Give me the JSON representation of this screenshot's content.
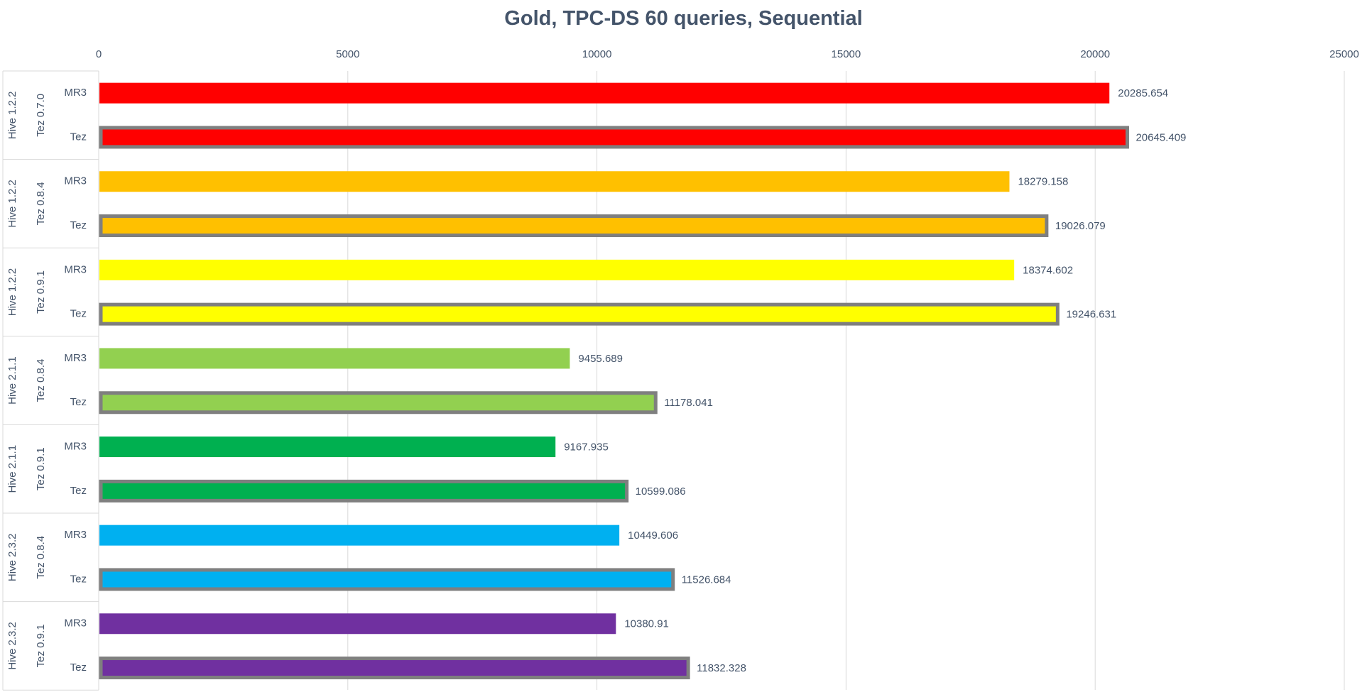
{
  "chart_data": {
    "type": "bar",
    "orientation": "horizontal",
    "title": "Gold, TPC-DS 60 queries, Sequential",
    "xlabel": "",
    "ylabel": "",
    "xlim": [
      0,
      25000
    ],
    "x_ticks": [
      0,
      5000,
      10000,
      15000,
      20000,
      25000
    ],
    "grid": true,
    "legend": "none",
    "groups": [
      {
        "hive": "Hive 1.2.2",
        "tez": "Tez 0.7.0",
        "color": "#ff0000",
        "bars": [
          {
            "label": "MR3",
            "value": 20285.654
          },
          {
            "label": "Tez",
            "value": 20645.409
          }
        ]
      },
      {
        "hive": "Hive 1.2.2",
        "tez": "Tez 0.8.4",
        "color": "#ffc000",
        "bars": [
          {
            "label": "MR3",
            "value": 18279.158
          },
          {
            "label": "Tez",
            "value": 19026.079
          }
        ]
      },
      {
        "hive": "Hive 1.2.2",
        "tez": "Tez 0.9.1",
        "color": "#ffff00",
        "bars": [
          {
            "label": "MR3",
            "value": 18374.602
          },
          {
            "label": "Tez",
            "value": 19246.631
          }
        ]
      },
      {
        "hive": "Hive 2.1.1",
        "tez": "Tez 0.8.4",
        "color": "#92d050",
        "bars": [
          {
            "label": "MR3",
            "value": 9455.689
          },
          {
            "label": "Tez",
            "value": 11178.041
          }
        ]
      },
      {
        "hive": "Hive 2.1.1",
        "tez": "Tez 0.9.1",
        "color": "#00b050",
        "bars": [
          {
            "label": "MR3",
            "value": 9167.935
          },
          {
            "label": "Tez",
            "value": 10599.086
          }
        ]
      },
      {
        "hive": "Hive 2.3.2",
        "tez": "Tez 0.8.4",
        "color": "#00b0f0",
        "bars": [
          {
            "label": "MR3",
            "value": 10449.606
          },
          {
            "label": "Tez",
            "value": 11526.684
          }
        ]
      },
      {
        "hive": "Hive 2.3.2",
        "tez": "Tez 0.9.1",
        "color": "#7030a0",
        "bars": [
          {
            "label": "MR3",
            "value": 10380.91
          },
          {
            "label": "Tez",
            "value": 11832.328
          }
        ]
      }
    ],
    "tez_bar_border_color": "#7f7f7f"
  }
}
